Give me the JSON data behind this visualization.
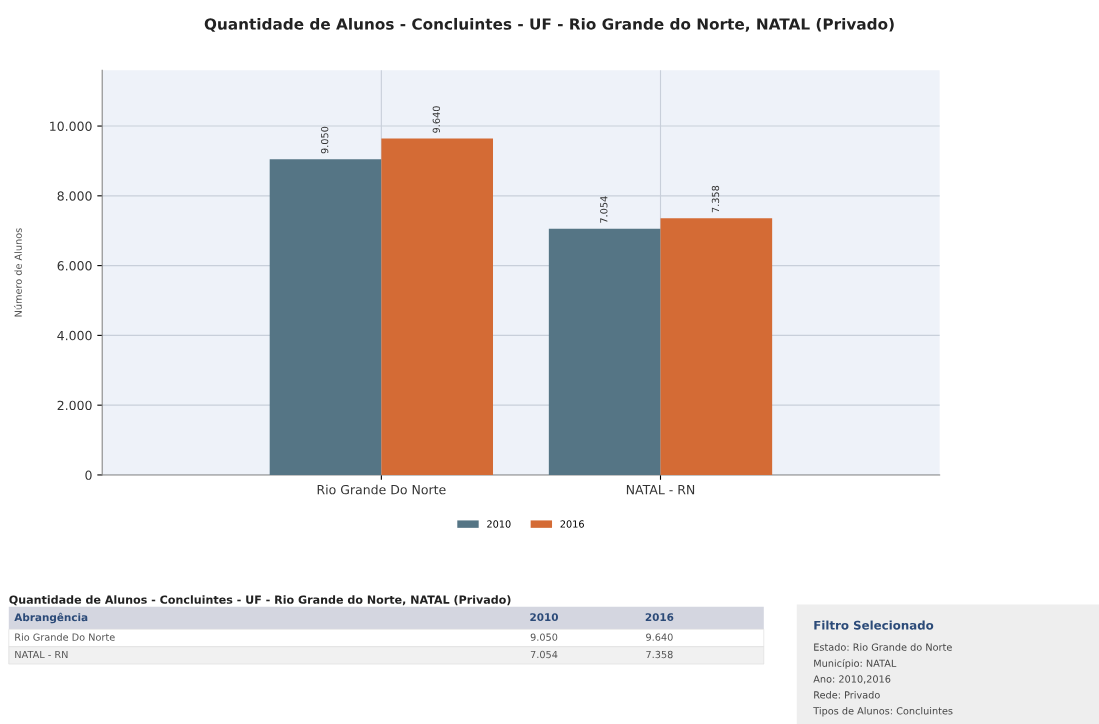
{
  "chart_data": {
    "type": "bar",
    "title": "Quantidade de Alunos - Concluintes - UF - Rio Grande do Norte, NATAL (Privado)",
    "ylabel": "Número de Alunos",
    "categories": [
      "Rio Grande Do Norte",
      "NATAL - RN"
    ],
    "series": [
      {
        "name": "2010",
        "color": "#557585",
        "values": [
          9050,
          7054
        ],
        "value_labels": [
          "9.050",
          "7.054"
        ]
      },
      {
        "name": "2016",
        "color": "#d46b35",
        "values": [
          9640,
          7358
        ],
        "value_labels": [
          "9.640",
          "7.358"
        ]
      }
    ],
    "ylim": [
      0,
      11600
    ],
    "yticks": [
      {
        "value": 0,
        "label": "0"
      },
      {
        "value": 2000,
        "label": "2.000"
      },
      {
        "value": 4000,
        "label": "4.000"
      },
      {
        "value": 6000,
        "label": "6.000"
      },
      {
        "value": 8000,
        "label": "8.000"
      },
      {
        "value": 10000,
        "label": "10.000"
      }
    ],
    "grid": true,
    "legend": "bottom",
    "annotations": [
      "Quantidade de Alunos - Concluintes - UF - Rio Grande do Norte, NATAL (Privado)",
      "Abrangência",
      "Filtro Selecionado",
      "Estado: Rio Grande do Norte",
      "Município: NATAL",
      "Ano: 2010,2016",
      "Rede: Privado",
      "Tipos de Alunos: Concluintes"
    ]
  }
}
